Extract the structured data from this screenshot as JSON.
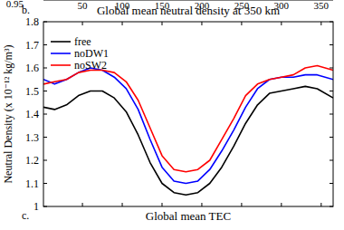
{
  "chart_data": [
    {
      "type": "line",
      "xlim": [
        1,
        365
      ],
      "xticks": [
        50,
        100,
        150,
        200,
        250,
        300,
        350
      ],
      "yticks": [
        0.95
      ]
    },
    {
      "type": "line",
      "panel": "b.",
      "title": "Global mean neutral density at 350 km",
      "y_label": "Neutral Density (x 10⁻¹² kg/m³)",
      "x": [
        1,
        15,
        30,
        45,
        60,
        75,
        90,
        105,
        120,
        135,
        150,
        165,
        180,
        195,
        210,
        225,
        240,
        255,
        270,
        285,
        300,
        315,
        330,
        345,
        365
      ],
      "series": [
        {
          "name": "free",
          "color": "#000000",
          "values": [
            1.43,
            1.42,
            1.44,
            1.48,
            1.5,
            1.5,
            1.47,
            1.41,
            1.31,
            1.19,
            1.1,
            1.06,
            1.05,
            1.06,
            1.1,
            1.17,
            1.26,
            1.36,
            1.44,
            1.49,
            1.5,
            1.51,
            1.52,
            1.51,
            1.47
          ]
        },
        {
          "name": "noDW1",
          "color": "#0000ff",
          "values": [
            1.55,
            1.53,
            1.55,
            1.58,
            1.6,
            1.59,
            1.56,
            1.51,
            1.42,
            1.29,
            1.17,
            1.11,
            1.1,
            1.11,
            1.16,
            1.24,
            1.33,
            1.43,
            1.51,
            1.55,
            1.56,
            1.56,
            1.57,
            1.57,
            1.55
          ]
        },
        {
          "name": "noSW2",
          "color": "#ff0000",
          "values": [
            1.53,
            1.54,
            1.55,
            1.58,
            1.59,
            1.59,
            1.58,
            1.54,
            1.46,
            1.34,
            1.22,
            1.16,
            1.15,
            1.16,
            1.2,
            1.29,
            1.38,
            1.48,
            1.53,
            1.55,
            1.56,
            1.57,
            1.6,
            1.61,
            1.59
          ]
        }
      ],
      "xlim": [
        1,
        365
      ],
      "xticks": [
        50,
        100,
        150,
        200,
        250,
        300,
        350
      ],
      "ylim": [
        1,
        1.8
      ],
      "yticks": [
        1,
        1.1,
        1.2,
        1.3,
        1.4,
        1.5,
        1.6,
        1.7,
        1.8
      ],
      "legend": "upper-left"
    },
    {
      "type": "line",
      "panel": "c.",
      "title": "Global mean TEC"
    }
  ]
}
